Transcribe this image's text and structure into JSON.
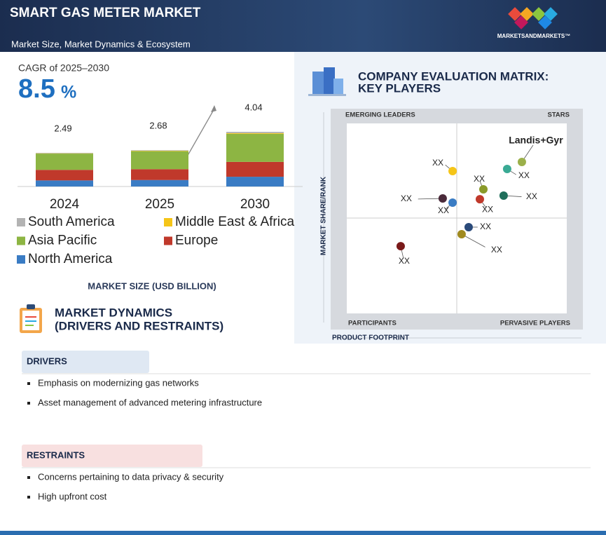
{
  "header": {
    "title": "SMART GAS METER MARKET",
    "subtitle": "Market Size, Market Dynamics & Ecosystem",
    "brand": "MARKETSANDMARKETS™"
  },
  "chart_data": {
    "type": "stacked-bar",
    "cagr_label": "CAGR of 2025–2030",
    "cagr_value": "8.5",
    "cagr_unit": "%",
    "categories": [
      "2024",
      "2025",
      "2030"
    ],
    "totals": [
      2.49,
      2.68,
      4.04
    ],
    "series": [
      {
        "name": "South America",
        "color": "#b3b3b3",
        "values": [
          0.04,
          0.04,
          0.1
        ]
      },
      {
        "name": "Middle East & Africa",
        "color": "#f5c518",
        "values": [
          0.02,
          0.03,
          0.05
        ]
      },
      {
        "name": "Asia Pacific",
        "color": "#8db543",
        "values": [
          1.2,
          1.33,
          2.07
        ]
      },
      {
        "name": "Europe",
        "color": "#c0392b",
        "values": [
          0.78,
          0.8,
          1.1
        ]
      },
      {
        "name": "North America",
        "color": "#3a7cc4",
        "values": [
          0.45,
          0.48,
          0.72
        ]
      }
    ],
    "xlabel": "MARKET SIZE (USD BILLION)"
  },
  "matrix": {
    "title_lines": [
      "COMPANY EVALUATION MATRIX:",
      "KEY PLAYERS"
    ],
    "quadrants": {
      "top_left": "EMERGING LEADERS",
      "top_right": "STARS",
      "bottom_left": "PARTICIPANTS",
      "bottom_right": "PERVASIVE PLAYERS"
    },
    "xlabel": "PRODUCT FOOTPRINT",
    "ylabel": "MARKET SHARE/RANK",
    "xlim": [
      0,
      100
    ],
    "ylim": [
      0,
      100
    ],
    "points": [
      {
        "label": "Landis+Gyr",
        "x": 79.6,
        "y": 79.7,
        "color": "#9bb04a"
      },
      {
        "label": "XX",
        "x": 72.9,
        "y": 76.0,
        "color": "#3aaa94"
      },
      {
        "label": "XX",
        "x": 48.1,
        "y": 74.9,
        "color": "#f5c518"
      },
      {
        "label": "XX",
        "x": 62.1,
        "y": 65.3,
        "color": "#8a9a2a"
      },
      {
        "label": "XX",
        "x": 60.5,
        "y": 60.1,
        "color": "#c0392b"
      },
      {
        "label": "XX",
        "x": 71.3,
        "y": 62.0,
        "color": "#1f6e5a"
      },
      {
        "label": "XX",
        "x": 43.6,
        "y": 60.5,
        "color": "#4a2a3a"
      },
      {
        "label": "XX",
        "x": 48.1,
        "y": 58.3,
        "color": "#3a7cc4"
      },
      {
        "label": "XX",
        "x": 55.4,
        "y": 45.4,
        "color": "#2a4a7a"
      },
      {
        "label": "XX",
        "x": 52.2,
        "y": 41.7,
        "color": "#a08a20"
      },
      {
        "label": "XX",
        "x": 24.5,
        "y": 35.4,
        "color": "#7a1a1a"
      }
    ]
  },
  "dynamics": {
    "title_lines": [
      "MARKET DYNAMICS",
      "(DRIVERS AND RESTRAINTS)"
    ],
    "drivers": {
      "title": "DRIVERS",
      "items": [
        "Emphasis on modernizing gas networks",
        "Asset management of advanced metering infrastructure"
      ]
    },
    "restraints": {
      "title": "RESTRAINTS",
      "items": [
        "Concerns pertaining to data privacy & security",
        "High upfront cost"
      ]
    }
  }
}
